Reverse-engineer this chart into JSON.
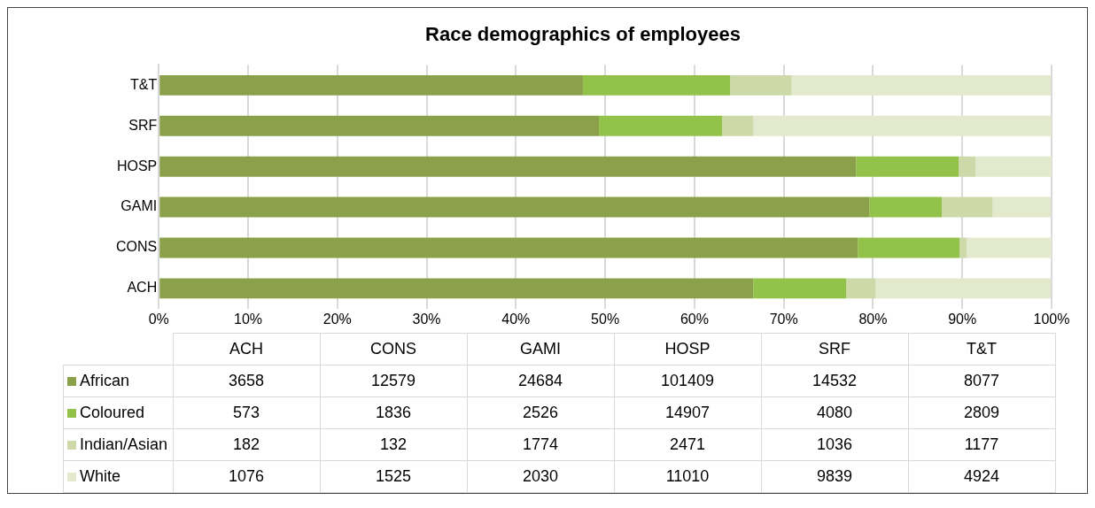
{
  "chart_data": [
    {
      "type": "bar",
      "orientation": "horizontal",
      "stacked": true,
      "title": "Race demographics of employees",
      "categories": [
        "T&T",
        "SRF",
        "HOSP",
        "GAMI",
        "CONS",
        "ACH"
      ],
      "series": [
        {
          "color": "#8aa04a",
          "values": [
            47.5,
            49.3,
            78.1,
            79.6,
            78.3,
            66.6
          ]
        },
        {
          "color": "#92c24a",
          "values": [
            16.5,
            13.8,
            11.5,
            8.1,
            11.4,
            10.4
          ]
        },
        {
          "color": "#cdd9a8",
          "values": [
            6.9,
            3.5,
            1.9,
            5.7,
            0.8,
            3.3
          ]
        },
        {
          "color": "#e2e9cc",
          "values": [
            29.0,
            33.4,
            8.5,
            6.5,
            9.5,
            19.6
          ]
        }
      ],
      "xlim": [
        0,
        100
      ],
      "xticks": [
        {
          "value": 0,
          "label": "0%"
        },
        {
          "value": 10,
          "label": "10%"
        },
        {
          "value": 20,
          "label": "20%"
        },
        {
          "value": 30,
          "label": "30%"
        },
        {
          "value": 40,
          "label": "40%"
        },
        {
          "value": 50,
          "label": "50%"
        },
        {
          "value": 60,
          "label": "60%"
        },
        {
          "value": 70,
          "label": "70%"
        },
        {
          "value": 80,
          "label": "80%"
        },
        {
          "value": 90,
          "label": "90%"
        },
        {
          "value": 100,
          "label": "100%"
        }
      ],
      "grid": "x",
      "legend": false
    },
    {
      "type": "other",
      "data_labels": true,
      "categories": [
        "ACH",
        "CONS",
        "GAMI",
        "HOSP",
        "SRF",
        "T&T"
      ],
      "series": [
        {
          "name": "African",
          "color": "#8aa04a",
          "values": [
            3658,
            12579,
            24684,
            101409,
            14532,
            8077
          ]
        },
        {
          "name": "Coloured",
          "color": "#92c24a",
          "values": [
            573,
            1836,
            2526,
            14907,
            4080,
            2809
          ]
        },
        {
          "name": "Indian/Asian",
          "color": "#cdd9a8",
          "values": [
            182,
            132,
            1774,
            2471,
            1036,
            1177
          ]
        },
        {
          "name": "White",
          "color": "#e2e9cc",
          "values": [
            1076,
            1525,
            2030,
            11010,
            9839,
            4924
          ]
        }
      ]
    }
  ]
}
